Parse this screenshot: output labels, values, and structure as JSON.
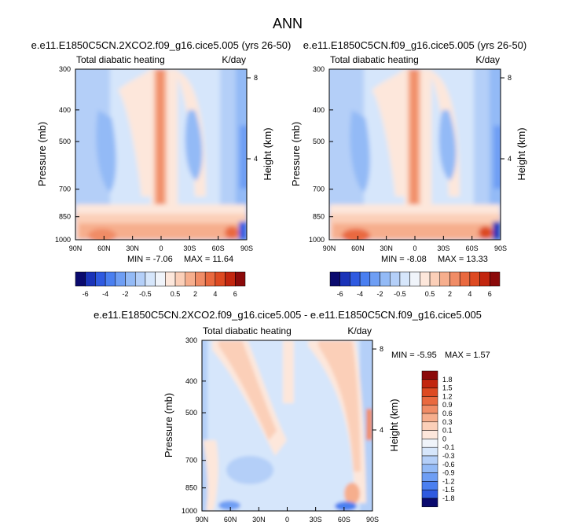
{
  "figure_title": "ANN",
  "colors": {
    "blues": [
      "#0a0a6e",
      "#1a33b8",
      "#2f5ae0",
      "#4a7ff0",
      "#6e9ef4",
      "#93baf6",
      "#b4cff8",
      "#d6e6fb"
    ],
    "neutral": "#f0f4fa",
    "reds": [
      "#fde7db",
      "#fbcfb8",
      "#f6ae8d",
      "#f08c66",
      "#e9693f",
      "#dd4a22",
      "#c2260f",
      "#8b0a0a"
    ]
  },
  "chart_data": [
    {
      "type": "heatmap",
      "name": "panel-2xco2",
      "title": "e.e11.E1850C5CN.2XCO2.f09_g16.cice5.005 (yrs 26-50)",
      "left_label": "Total diabatic heating",
      "right_label": "K/day",
      "ylabel": "Pressure (mb)",
      "y2label": "Height (km)",
      "x_ticks": [
        "90N",
        "60N",
        "30N",
        "0",
        "30S",
        "60S",
        "90S"
      ],
      "x_values": [
        90,
        60,
        30,
        0,
        -30,
        -60,
        -90
      ],
      "y_ticks": [
        "300",
        "400",
        "500",
        "700",
        "850",
        "1000"
      ],
      "y_values": [
        300,
        400,
        500,
        700,
        850,
        1000
      ],
      "y2_ticks": [
        "8",
        "4"
      ],
      "y2_values": [
        8,
        4
      ],
      "ylim": [
        300,
        1000
      ],
      "xlim": [
        90,
        -90
      ],
      "min_label": "MIN = ",
      "min": "-7.06",
      "max_label": "MAX = ",
      "max": "11.64"
    },
    {
      "type": "heatmap",
      "name": "panel-control",
      "title": "e.e11.E1850C5CN.f09_g16.cice5.005 (yrs 26-50)",
      "left_label": "Total diabatic heating",
      "right_label": "K/day",
      "ylabel": "Pressure (mb)",
      "y2label": "Height (km)",
      "x_ticks": [
        "90N",
        "60N",
        "30N",
        "0",
        "30S",
        "60S",
        "90S"
      ],
      "x_values": [
        90,
        60,
        30,
        0,
        -30,
        -60,
        -90
      ],
      "y_ticks": [
        "300",
        "400",
        "500",
        "700",
        "850",
        "1000"
      ],
      "y_values": [
        300,
        400,
        500,
        700,
        850,
        1000
      ],
      "y2_ticks": [
        "8",
        "4"
      ],
      "y2_values": [
        8,
        4
      ],
      "ylim": [
        300,
        1000
      ],
      "xlim": [
        90,
        -90
      ],
      "min_label": "MIN = ",
      "min": "-8.08",
      "max_label": "MAX = ",
      "max": "13.33"
    },
    {
      "type": "heatmap",
      "name": "panel-difference",
      "title": "e.e11.E1850C5CN.2XCO2.f09_g16.cice5.005 - e.e11.E1850C5CN.f09_g16.cice5.005",
      "left_label": "Total diabatic heating",
      "right_label": "K/day",
      "ylabel": "Pressure (mb)",
      "y2label": "Height (km)",
      "x_ticks": [
        "90N",
        "60N",
        "30N",
        "0",
        "30S",
        "60S",
        "90S"
      ],
      "x_values": [
        90,
        60,
        30,
        0,
        -30,
        -60,
        -90
      ],
      "y_ticks": [
        "300",
        "400",
        "500",
        "700",
        "850",
        "1000"
      ],
      "y_values": [
        300,
        400,
        500,
        700,
        850,
        1000
      ],
      "y2_ticks": [
        "8",
        "4"
      ],
      "y2_values": [
        8,
        4
      ],
      "ylim": [
        300,
        1000
      ],
      "xlim": [
        90,
        -90
      ],
      "min_label": "MIN = ",
      "min": "-5.95",
      "max_label": "MAX = ",
      "max": "1.57"
    }
  ],
  "colorbars": {
    "shared": {
      "labels": [
        "-6",
        "-4",
        "-2",
        "-0.5",
        "0.5",
        "2",
        "4",
        "6"
      ]
    },
    "difference": {
      "labels": [
        "1.8",
        "1.5",
        "1.2",
        "0.9",
        "0.6",
        "0.3",
        "0.1",
        "0",
        "-0.1",
        "-0.3",
        "-0.6",
        "-0.9",
        "-1.2",
        "-1.5",
        "-1.8"
      ]
    }
  }
}
